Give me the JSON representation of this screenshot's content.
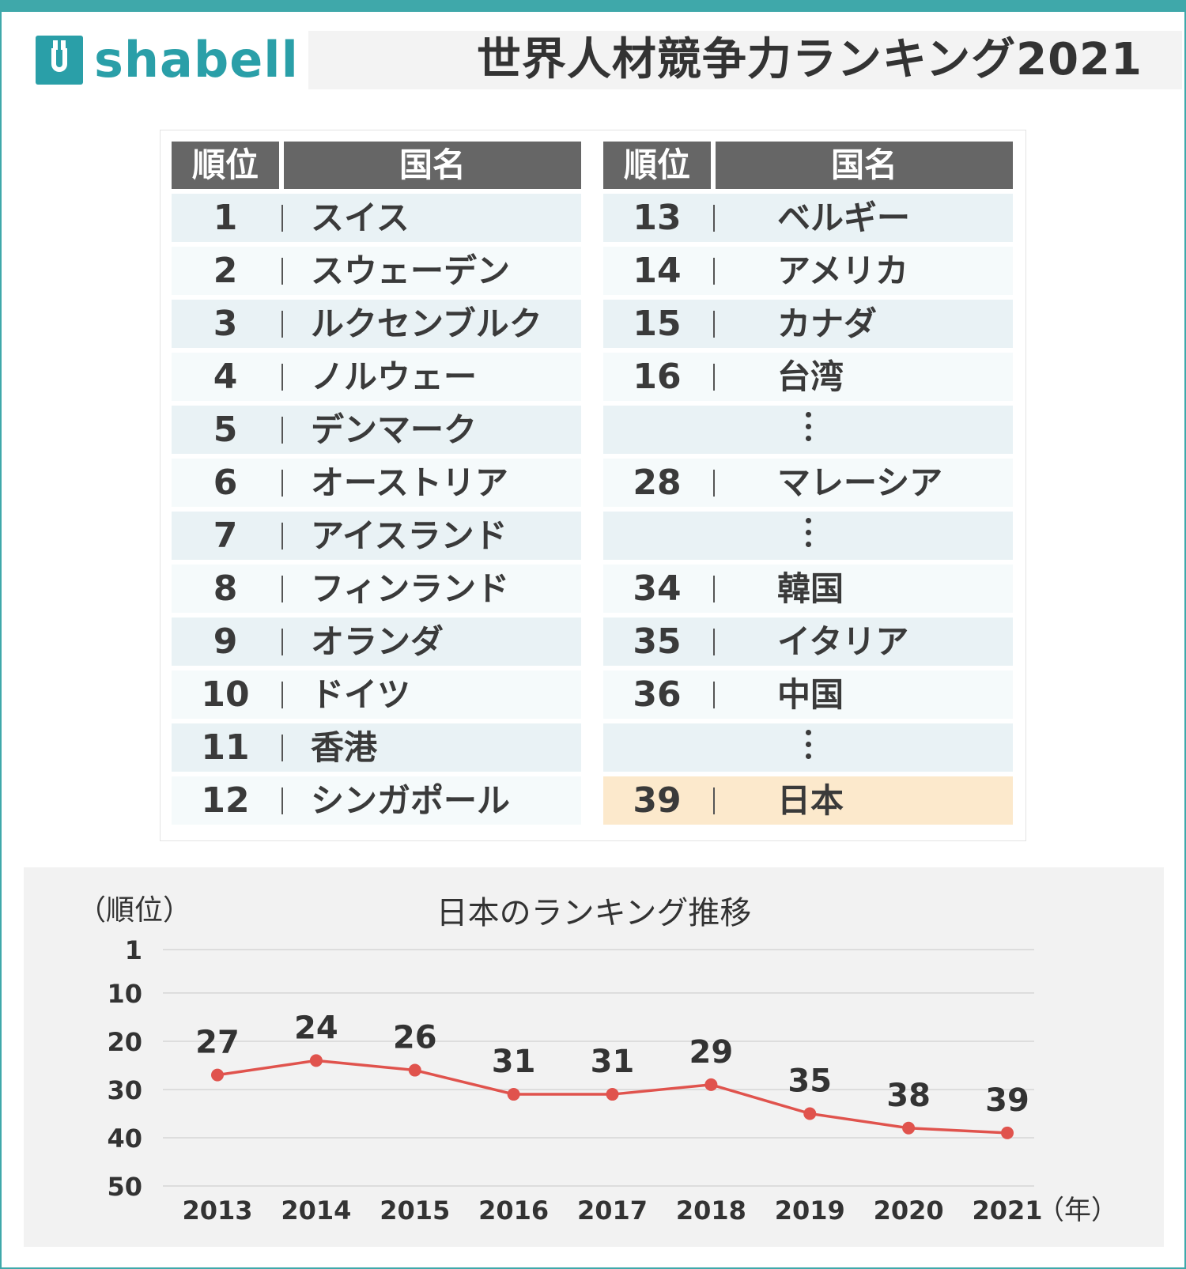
{
  "header": {
    "logo_text": "shabell",
    "title": "世界人材競争力ランキング2021"
  },
  "table": {
    "left_headers": {
      "rank": "順位",
      "name": "国名"
    },
    "right_headers": {
      "rank": "順位",
      "name": "国名"
    },
    "left_rows": [
      {
        "rank": "1",
        "name": "スイス"
      },
      {
        "rank": "2",
        "name": "スウェーデン"
      },
      {
        "rank": "3",
        "name": "ルクセンブルク"
      },
      {
        "rank": "4",
        "name": "ノルウェー"
      },
      {
        "rank": "5",
        "name": "デンマーク"
      },
      {
        "rank": "6",
        "name": "オーストリア"
      },
      {
        "rank": "7",
        "name": "アイスランド"
      },
      {
        "rank": "8",
        "name": "フィンランド"
      },
      {
        "rank": "9",
        "name": "オランダ"
      },
      {
        "rank": "10",
        "name": "ドイツ"
      },
      {
        "rank": "11",
        "name": "香港"
      },
      {
        "rank": "12",
        "name": "シンガポール"
      }
    ],
    "right_rows": [
      {
        "rank": "13",
        "name": "ベルギー"
      },
      {
        "rank": "14",
        "name": "アメリカ"
      },
      {
        "rank": "15",
        "name": "カナダ"
      },
      {
        "rank": "16",
        "name": "台湾"
      },
      {
        "rank": "",
        "name": "",
        "ellipsis": true
      },
      {
        "rank": "28",
        "name": "マレーシア"
      },
      {
        "rank": "",
        "name": "",
        "ellipsis": true
      },
      {
        "rank": "34",
        "name": "韓国"
      },
      {
        "rank": "35",
        "name": "イタリア"
      },
      {
        "rank": "36",
        "name": "中国"
      },
      {
        "rank": "",
        "name": "",
        "ellipsis": true
      },
      {
        "rank": "39",
        "name": "日本",
        "highlight": true
      }
    ],
    "highlight_color": "#fce9cc"
  },
  "chart_data": {
    "type": "line",
    "title": "日本のランキング推移",
    "ylabel": "（順位）",
    "xlabel": "（年）",
    "categories": [
      "2013",
      "2014",
      "2015",
      "2016",
      "2017",
      "2018",
      "2019",
      "2020",
      "2021"
    ],
    "values": [
      27,
      24,
      26,
      31,
      31,
      29,
      35,
      38,
      39
    ],
    "data_labels": [
      "27",
      "24",
      "26",
      "31",
      "31",
      "29",
      "35",
      "38",
      "39"
    ],
    "y_ticks": [
      1,
      10,
      20,
      30,
      40,
      50
    ],
    "ylim": [
      1,
      50
    ],
    "y_inverted": true,
    "grid": true,
    "series_color": "#e0534d"
  }
}
